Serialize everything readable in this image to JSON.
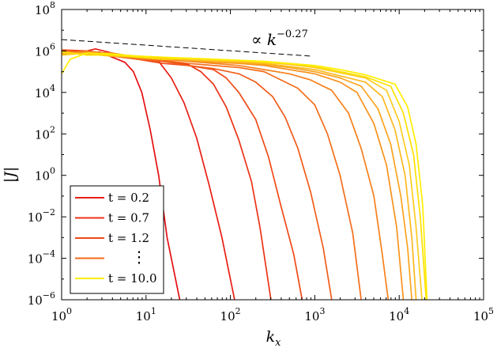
{
  "chart_data": {
    "type": "line",
    "xscale": "log",
    "yscale": "log",
    "xlim_exp": [
      0,
      5
    ],
    "ylim_exp": [
      -6,
      8
    ],
    "xlabel": {
      "base": "k",
      "sub": "x"
    },
    "ylabel": "|J|",
    "xtick_base": "10",
    "xtick_exponents": [
      "0",
      "1",
      "2",
      "3",
      "4",
      "5"
    ],
    "ytick_base": "10",
    "ytick_exponents": [
      "−6",
      "−4",
      "−2",
      "0",
      "2",
      "4",
      "6",
      "8"
    ],
    "annotation": {
      "prefix": "∝ k",
      "exponent": "−0.27"
    },
    "reference_line": {
      "slope": -0.27,
      "x_log": [
        0,
        2.95
      ],
      "y_log_start": 6.55,
      "style": "dashed"
    },
    "legend": [
      {
        "label": "t =   0.2",
        "color": "#e81e14"
      },
      {
        "label": "t =   0.7",
        "color": "#ec3317"
      },
      {
        "label": "t =   1.2",
        "color": "#ef4a18"
      },
      {
        "label": "⋮",
        "color": "#f46a1a"
      },
      {
        "label": "t = 10.0",
        "color": "#ffee00"
      }
    ],
    "series": [
      {
        "color": "#e30f12",
        "points": [
          [
            0,
            5.95
          ],
          [
            0.15,
            6.0
          ],
          [
            0.3,
            5.85
          ],
          [
            0.45,
            5.95
          ],
          [
            0.6,
            5.7
          ],
          [
            0.75,
            5.45
          ],
          [
            0.85,
            5.0
          ],
          [
            0.95,
            4.0
          ],
          [
            1.05,
            2.2
          ],
          [
            1.15,
            0.0
          ],
          [
            1.25,
            -3.0
          ],
          [
            1.4,
            -6.0
          ]
        ]
      },
      {
        "color": "#e81e14",
        "points": [
          [
            0,
            6.0
          ],
          [
            0.2,
            5.9
          ],
          [
            0.4,
            6.1
          ],
          [
            0.6,
            5.9
          ],
          [
            0.8,
            5.7
          ],
          [
            1.0,
            5.6
          ],
          [
            1.15,
            5.5
          ],
          [
            1.3,
            4.7
          ],
          [
            1.45,
            3.5
          ],
          [
            1.6,
            1.8
          ],
          [
            1.75,
            -0.5
          ],
          [
            1.9,
            -3.0
          ],
          [
            2.05,
            -6.0
          ]
        ]
      },
      {
        "color": "#ec3317",
        "points": [
          [
            0,
            5.9
          ],
          [
            0.3,
            5.95
          ],
          [
            0.6,
            5.8
          ],
          [
            0.9,
            5.6
          ],
          [
            1.2,
            5.5
          ],
          [
            1.5,
            5.35
          ],
          [
            1.65,
            5.0
          ],
          [
            1.8,
            4.4
          ],
          [
            1.95,
            3.3
          ],
          [
            2.1,
            1.7
          ],
          [
            2.25,
            -0.3
          ],
          [
            2.35,
            -2.5
          ],
          [
            2.48,
            -6.0
          ]
        ]
      },
      {
        "color": "#ef4a18",
        "points": [
          [
            0,
            6.05
          ],
          [
            0.3,
            6.0
          ],
          [
            0.6,
            5.85
          ],
          [
            0.9,
            5.6
          ],
          [
            1.2,
            5.4
          ],
          [
            1.5,
            5.3
          ],
          [
            1.8,
            5.1
          ],
          [
            1.95,
            4.7
          ],
          [
            2.1,
            4.0
          ],
          [
            2.3,
            2.7
          ],
          [
            2.45,
            0.9
          ],
          [
            2.6,
            -1.5
          ],
          [
            2.75,
            -3.8
          ],
          [
            2.85,
            -6.0
          ]
        ]
      },
      {
        "color": "#f15c19",
        "points": [
          [
            0,
            5.95
          ],
          [
            0.3,
            5.85
          ],
          [
            0.6,
            5.9
          ],
          [
            0.9,
            5.6
          ],
          [
            1.2,
            5.5
          ],
          [
            1.5,
            5.3
          ],
          [
            1.8,
            5.15
          ],
          [
            2.1,
            4.9
          ],
          [
            2.3,
            4.5
          ],
          [
            2.5,
            3.8
          ],
          [
            2.65,
            2.8
          ],
          [
            2.8,
            1.3
          ],
          [
            2.95,
            -0.8
          ],
          [
            3.1,
            -3.5
          ],
          [
            3.2,
            -6.0
          ]
        ]
      },
      {
        "color": "#f46e1b",
        "points": [
          [
            0,
            5.9
          ],
          [
            0.3,
            6.0
          ],
          [
            0.6,
            5.75
          ],
          [
            0.9,
            5.6
          ],
          [
            1.2,
            5.55
          ],
          [
            1.5,
            5.4
          ],
          [
            1.8,
            5.3
          ],
          [
            2.1,
            5.2
          ],
          [
            2.4,
            5.0
          ],
          [
            2.6,
            4.6
          ],
          [
            2.8,
            4.2
          ],
          [
            3.0,
            3.4
          ],
          [
            3.15,
            2.0
          ],
          [
            3.3,
            0.0
          ],
          [
            3.45,
            -2.8
          ],
          [
            3.55,
            -6.0
          ]
        ]
      },
      {
        "color": "#f6801c",
        "points": [
          [
            0,
            6.0
          ],
          [
            0.3,
            5.9
          ],
          [
            0.6,
            5.85
          ],
          [
            0.9,
            5.65
          ],
          [
            1.2,
            5.6
          ],
          [
            1.5,
            5.5
          ],
          [
            1.8,
            5.4
          ],
          [
            2.1,
            5.3
          ],
          [
            2.4,
            5.1
          ],
          [
            2.7,
            4.9
          ],
          [
            2.95,
            4.6
          ],
          [
            3.2,
            4.1
          ],
          [
            3.4,
            3.0
          ],
          [
            3.55,
            1.3
          ],
          [
            3.7,
            -1.0
          ],
          [
            3.8,
            -3.8
          ],
          [
            3.87,
            -6.0
          ]
        ]
      },
      {
        "color": "#f8921d",
        "points": [
          [
            0,
            5.85
          ],
          [
            0.3,
            5.95
          ],
          [
            0.6,
            5.9
          ],
          [
            0.9,
            5.7
          ],
          [
            1.2,
            5.6
          ],
          [
            1.5,
            5.55
          ],
          [
            1.8,
            5.45
          ],
          [
            2.1,
            5.4
          ],
          [
            2.4,
            5.3
          ],
          [
            2.7,
            5.1
          ],
          [
            3.0,
            4.9
          ],
          [
            3.3,
            4.5
          ],
          [
            3.5,
            4.0
          ],
          [
            3.7,
            2.5
          ],
          [
            3.85,
            0.5
          ],
          [
            3.97,
            -2.5
          ],
          [
            4.05,
            -6.0
          ]
        ]
      },
      {
        "color": "#faa41e",
        "points": [
          [
            0,
            5.95
          ],
          [
            0.3,
            5.85
          ],
          [
            0.6,
            5.8
          ],
          [
            0.9,
            5.75
          ],
          [
            1.2,
            5.6
          ],
          [
            1.5,
            5.6
          ],
          [
            1.8,
            5.5
          ],
          [
            2.1,
            5.45
          ],
          [
            2.4,
            5.35
          ],
          [
            2.7,
            5.2
          ],
          [
            3.0,
            5.0
          ],
          [
            3.3,
            4.7
          ],
          [
            3.55,
            4.3
          ],
          [
            3.75,
            3.2
          ],
          [
            3.9,
            1.5
          ],
          [
            4.02,
            -1.0
          ],
          [
            4.1,
            -3.5
          ],
          [
            4.15,
            -6.0
          ]
        ]
      },
      {
        "color": "#fcb81f",
        "points": [
          [
            0,
            5.9
          ],
          [
            0.3,
            5.85
          ],
          [
            0.6,
            5.75
          ],
          [
            0.9,
            5.7
          ],
          [
            1.2,
            5.65
          ],
          [
            1.5,
            5.55
          ],
          [
            1.8,
            5.5
          ],
          [
            2.1,
            5.45
          ],
          [
            2.4,
            5.4
          ],
          [
            2.7,
            5.25
          ],
          [
            3.0,
            5.1
          ],
          [
            3.3,
            4.8
          ],
          [
            3.6,
            4.5
          ],
          [
            3.8,
            3.8
          ],
          [
            3.95,
            2.2
          ],
          [
            4.07,
            0.0
          ],
          [
            4.15,
            -3.0
          ],
          [
            4.2,
            -6.0
          ]
        ]
      },
      {
        "color": "#fdcc20",
        "points": [
          [
            0,
            5.8
          ],
          [
            0.3,
            5.9
          ],
          [
            0.6,
            5.85
          ],
          [
            0.9,
            5.75
          ],
          [
            1.2,
            5.7
          ],
          [
            1.5,
            5.6
          ],
          [
            1.8,
            5.55
          ],
          [
            2.1,
            5.5
          ],
          [
            2.4,
            5.45
          ],
          [
            2.7,
            5.35
          ],
          [
            3.0,
            5.2
          ],
          [
            3.3,
            4.95
          ],
          [
            3.6,
            4.7
          ],
          [
            3.85,
            4.1
          ],
          [
            4.0,
            2.6
          ],
          [
            4.12,
            0.5
          ],
          [
            4.2,
            -2.5
          ],
          [
            4.27,
            -6.0
          ]
        ]
      },
      {
        "color": "#fee000",
        "points": [
          [
            0,
            5.95
          ],
          [
            0.3,
            5.8
          ],
          [
            0.6,
            5.8
          ],
          [
            0.9,
            5.7
          ],
          [
            1.2,
            5.6
          ],
          [
            1.5,
            5.65
          ],
          [
            1.8,
            5.6
          ],
          [
            2.1,
            5.55
          ],
          [
            2.4,
            5.45
          ],
          [
            2.7,
            5.4
          ],
          [
            3.0,
            5.25
          ],
          [
            3.3,
            5.0
          ],
          [
            3.6,
            4.75
          ],
          [
            3.9,
            4.3
          ],
          [
            4.05,
            3.0
          ],
          [
            4.17,
            1.0
          ],
          [
            4.25,
            -2.0
          ],
          [
            4.32,
            -6.0
          ]
        ]
      },
      {
        "color": "#ffee00",
        "points": [
          [
            0,
            4.9
          ],
          [
            0.1,
            5.6
          ],
          [
            0.3,
            5.9
          ],
          [
            0.6,
            5.85
          ],
          [
            0.9,
            5.75
          ],
          [
            1.2,
            5.7
          ],
          [
            1.5,
            5.65
          ],
          [
            1.8,
            5.6
          ],
          [
            2.1,
            5.55
          ],
          [
            2.4,
            5.5
          ],
          [
            2.7,
            5.4
          ],
          [
            3.0,
            5.3
          ],
          [
            3.3,
            5.1
          ],
          [
            3.6,
            4.85
          ],
          [
            3.95,
            4.4
          ],
          [
            4.1,
            3.3
          ],
          [
            4.2,
            1.5
          ],
          [
            4.28,
            -1.5
          ],
          [
            4.33,
            -6.0
          ]
        ]
      }
    ]
  }
}
